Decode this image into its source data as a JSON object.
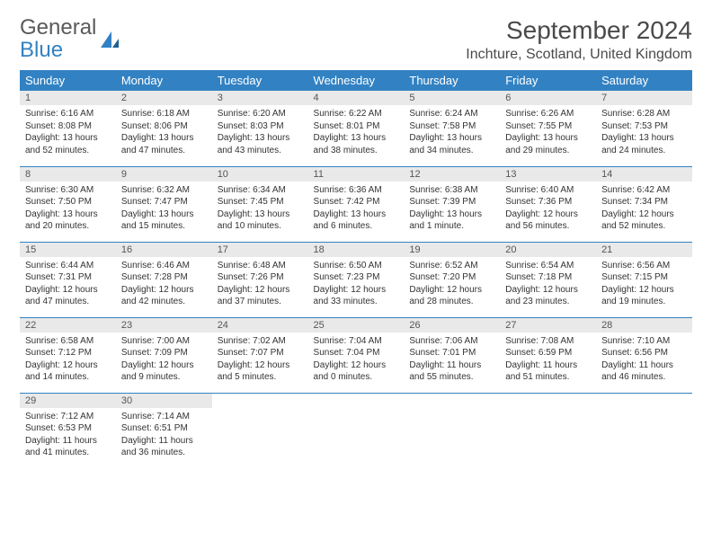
{
  "logo": {
    "line1": "General",
    "line2": "Blue"
  },
  "title": "September 2024",
  "location": "Inchture, Scotland, United Kingdom",
  "colors": {
    "header_bg": "#3282c3",
    "daynum_bg": "#e9e9e9",
    "text": "#333333",
    "divider": "#3282c3"
  },
  "day_headers": [
    "Sunday",
    "Monday",
    "Tuesday",
    "Wednesday",
    "Thursday",
    "Friday",
    "Saturday"
  ],
  "weeks": [
    [
      {
        "n": "1",
        "sunrise": "Sunrise: 6:16 AM",
        "sunset": "Sunset: 8:08 PM",
        "day": "Daylight: 13 hours and 52 minutes."
      },
      {
        "n": "2",
        "sunrise": "Sunrise: 6:18 AM",
        "sunset": "Sunset: 8:06 PM",
        "day": "Daylight: 13 hours and 47 minutes."
      },
      {
        "n": "3",
        "sunrise": "Sunrise: 6:20 AM",
        "sunset": "Sunset: 8:03 PM",
        "day": "Daylight: 13 hours and 43 minutes."
      },
      {
        "n": "4",
        "sunrise": "Sunrise: 6:22 AM",
        "sunset": "Sunset: 8:01 PM",
        "day": "Daylight: 13 hours and 38 minutes."
      },
      {
        "n": "5",
        "sunrise": "Sunrise: 6:24 AM",
        "sunset": "Sunset: 7:58 PM",
        "day": "Daylight: 13 hours and 34 minutes."
      },
      {
        "n": "6",
        "sunrise": "Sunrise: 6:26 AM",
        "sunset": "Sunset: 7:55 PM",
        "day": "Daylight: 13 hours and 29 minutes."
      },
      {
        "n": "7",
        "sunrise": "Sunrise: 6:28 AM",
        "sunset": "Sunset: 7:53 PM",
        "day": "Daylight: 13 hours and 24 minutes."
      }
    ],
    [
      {
        "n": "8",
        "sunrise": "Sunrise: 6:30 AM",
        "sunset": "Sunset: 7:50 PM",
        "day": "Daylight: 13 hours and 20 minutes."
      },
      {
        "n": "9",
        "sunrise": "Sunrise: 6:32 AM",
        "sunset": "Sunset: 7:47 PM",
        "day": "Daylight: 13 hours and 15 minutes."
      },
      {
        "n": "10",
        "sunrise": "Sunrise: 6:34 AM",
        "sunset": "Sunset: 7:45 PM",
        "day": "Daylight: 13 hours and 10 minutes."
      },
      {
        "n": "11",
        "sunrise": "Sunrise: 6:36 AM",
        "sunset": "Sunset: 7:42 PM",
        "day": "Daylight: 13 hours and 6 minutes."
      },
      {
        "n": "12",
        "sunrise": "Sunrise: 6:38 AM",
        "sunset": "Sunset: 7:39 PM",
        "day": "Daylight: 13 hours and 1 minute."
      },
      {
        "n": "13",
        "sunrise": "Sunrise: 6:40 AM",
        "sunset": "Sunset: 7:36 PM",
        "day": "Daylight: 12 hours and 56 minutes."
      },
      {
        "n": "14",
        "sunrise": "Sunrise: 6:42 AM",
        "sunset": "Sunset: 7:34 PM",
        "day": "Daylight: 12 hours and 52 minutes."
      }
    ],
    [
      {
        "n": "15",
        "sunrise": "Sunrise: 6:44 AM",
        "sunset": "Sunset: 7:31 PM",
        "day": "Daylight: 12 hours and 47 minutes."
      },
      {
        "n": "16",
        "sunrise": "Sunrise: 6:46 AM",
        "sunset": "Sunset: 7:28 PM",
        "day": "Daylight: 12 hours and 42 minutes."
      },
      {
        "n": "17",
        "sunrise": "Sunrise: 6:48 AM",
        "sunset": "Sunset: 7:26 PM",
        "day": "Daylight: 12 hours and 37 minutes."
      },
      {
        "n": "18",
        "sunrise": "Sunrise: 6:50 AM",
        "sunset": "Sunset: 7:23 PM",
        "day": "Daylight: 12 hours and 33 minutes."
      },
      {
        "n": "19",
        "sunrise": "Sunrise: 6:52 AM",
        "sunset": "Sunset: 7:20 PM",
        "day": "Daylight: 12 hours and 28 minutes."
      },
      {
        "n": "20",
        "sunrise": "Sunrise: 6:54 AM",
        "sunset": "Sunset: 7:18 PM",
        "day": "Daylight: 12 hours and 23 minutes."
      },
      {
        "n": "21",
        "sunrise": "Sunrise: 6:56 AM",
        "sunset": "Sunset: 7:15 PM",
        "day": "Daylight: 12 hours and 19 minutes."
      }
    ],
    [
      {
        "n": "22",
        "sunrise": "Sunrise: 6:58 AM",
        "sunset": "Sunset: 7:12 PM",
        "day": "Daylight: 12 hours and 14 minutes."
      },
      {
        "n": "23",
        "sunrise": "Sunrise: 7:00 AM",
        "sunset": "Sunset: 7:09 PM",
        "day": "Daylight: 12 hours and 9 minutes."
      },
      {
        "n": "24",
        "sunrise": "Sunrise: 7:02 AM",
        "sunset": "Sunset: 7:07 PM",
        "day": "Daylight: 12 hours and 5 minutes."
      },
      {
        "n": "25",
        "sunrise": "Sunrise: 7:04 AM",
        "sunset": "Sunset: 7:04 PM",
        "day": "Daylight: 12 hours and 0 minutes."
      },
      {
        "n": "26",
        "sunrise": "Sunrise: 7:06 AM",
        "sunset": "Sunset: 7:01 PM",
        "day": "Daylight: 11 hours and 55 minutes."
      },
      {
        "n": "27",
        "sunrise": "Sunrise: 7:08 AM",
        "sunset": "Sunset: 6:59 PM",
        "day": "Daylight: 11 hours and 51 minutes."
      },
      {
        "n": "28",
        "sunrise": "Sunrise: 7:10 AM",
        "sunset": "Sunset: 6:56 PM",
        "day": "Daylight: 11 hours and 46 minutes."
      }
    ],
    [
      {
        "n": "29",
        "sunrise": "Sunrise: 7:12 AM",
        "sunset": "Sunset: 6:53 PM",
        "day": "Daylight: 11 hours and 41 minutes."
      },
      {
        "n": "30",
        "sunrise": "Sunrise: 7:14 AM",
        "sunset": "Sunset: 6:51 PM",
        "day": "Daylight: 11 hours and 36 minutes."
      },
      null,
      null,
      null,
      null,
      null
    ]
  ]
}
